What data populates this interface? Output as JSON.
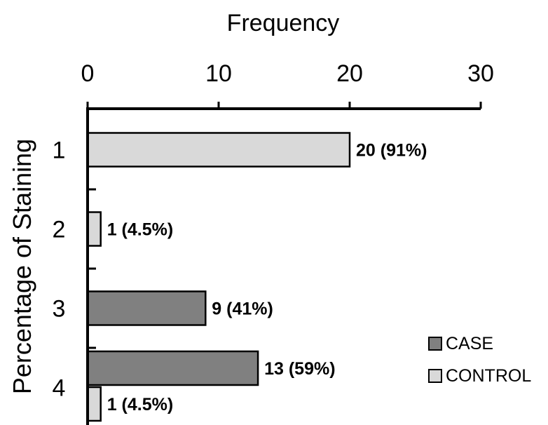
{
  "chart_data": {
    "type": "bar",
    "orientation": "horizontal",
    "title": "",
    "xlabel": "Frequency",
    "ylabel": "Percentage of Staining",
    "xlim": [
      0,
      30
    ],
    "x_ticks": [
      "0",
      "10",
      "20",
      "30"
    ],
    "x_axis_position": "top",
    "categories": [
      "1",
      "2",
      "3",
      "4"
    ],
    "series": [
      {
        "name": "CASE",
        "color": "#808080",
        "values": [
          0,
          0,
          9,
          13
        ],
        "labels": [
          "",
          "",
          "9 (41%)",
          "13 (59%)"
        ]
      },
      {
        "name": "CONTROL",
        "color": "#d9d9d9",
        "values": [
          20,
          1,
          0,
          1
        ],
        "labels": [
          "20 (91%)",
          "1 (4.5%)",
          "",
          "1 (4.5%)"
        ]
      }
    ],
    "legend": "bottom-right",
    "grid": false
  }
}
